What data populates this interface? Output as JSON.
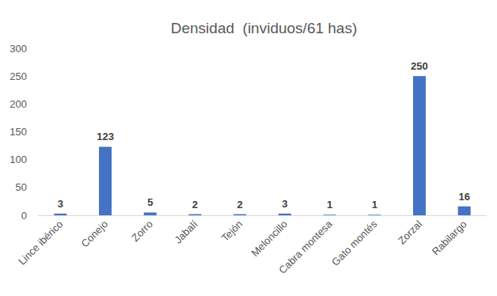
{
  "chart_data": {
    "type": "bar",
    "title": "Densidad  (inviduos/61 has)",
    "categories": [
      "Lince ibérico",
      "Conejo",
      "Zorro",
      "Jabalí",
      "Tejón",
      "Meloncillo",
      "Cabra montesa",
      "Gato montés",
      "Zorzal",
      "Rabilargo"
    ],
    "values": [
      3,
      123,
      5,
      2,
      2,
      3,
      1,
      1,
      250,
      16
    ],
    "color": "#4472c4",
    "ylim": [
      0,
      300
    ],
    "yticks": [
      0,
      50,
      100,
      150,
      200,
      250,
      300
    ],
    "grid": false,
    "data_labels": true
  }
}
